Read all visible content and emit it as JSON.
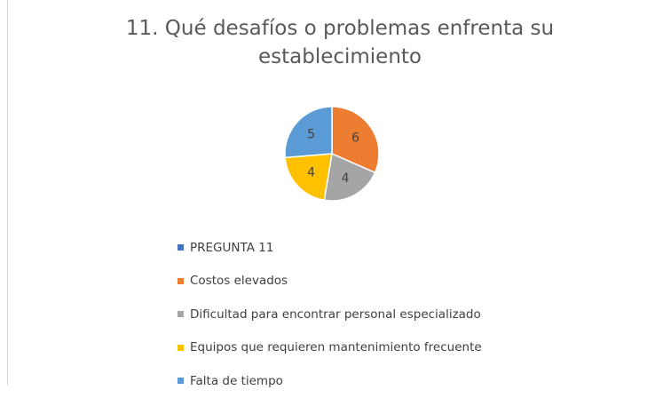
{
  "chart_data": {
    "type": "pie",
    "title": "11.  Qué desafíos o problemas enfrenta su establecimiento",
    "categories": [
      "PREGUNTA 11",
      "Costos elevados",
      "Dificultad para encontrar personal especializado",
      "Equipos que requieren mantenimiento frecuente",
      "Falta de tiempo"
    ],
    "values": [
      0,
      6,
      4,
      4,
      5
    ],
    "colors": [
      "#4472c4",
      "#ed7d31",
      "#a5a5a5",
      "#ffc000",
      "#5b9bd5"
    ],
    "legend": "bottom"
  }
}
